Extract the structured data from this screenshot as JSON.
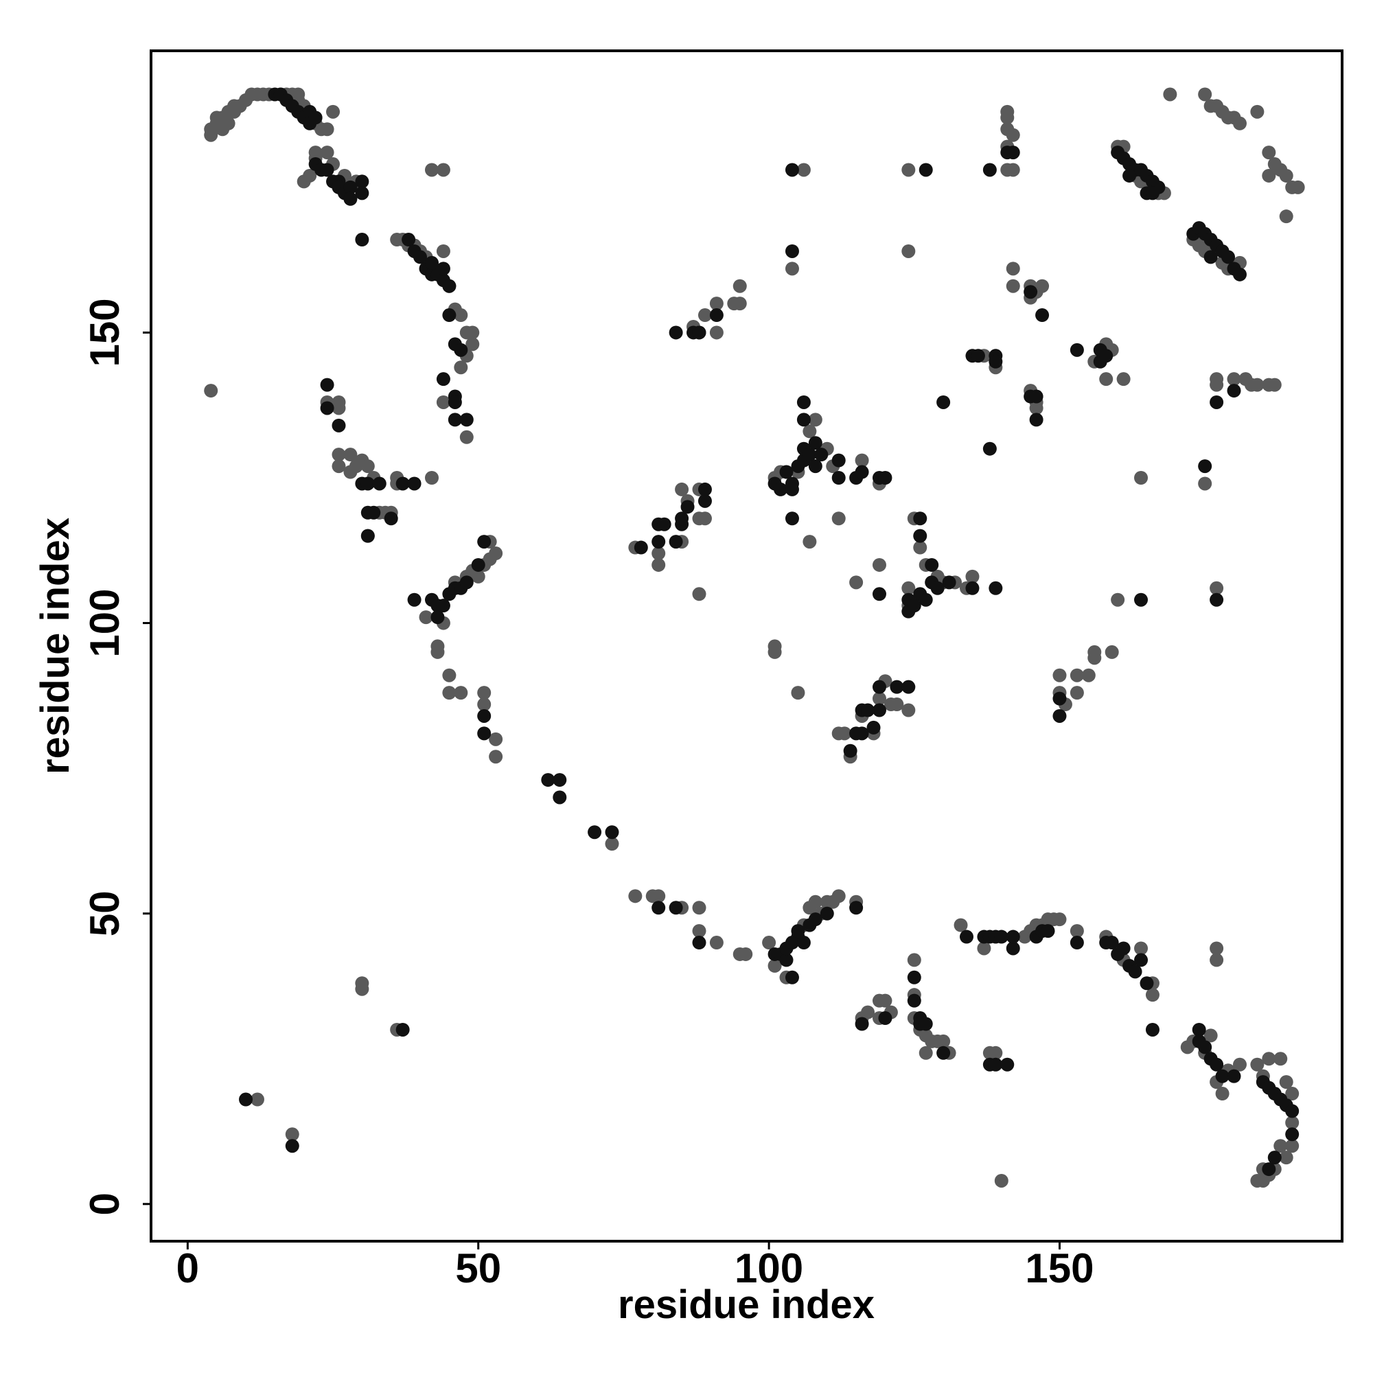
{
  "chart_data": {
    "type": "scatter",
    "xlabel": "residue index",
    "ylabel": "residue index",
    "xlim": [
      -6.3,
      198.6
    ],
    "ylim": [
      -6.4,
      198.5
    ],
    "xticks": [
      0,
      50,
      100,
      150
    ],
    "yticks": [
      0,
      50,
      100,
      150
    ],
    "series": [
      {
        "color": "#5a5a5a",
        "x": [
          4,
          4,
          5,
          5,
          6,
          6,
          7,
          7,
          8,
          8,
          9,
          10,
          11,
          12,
          13,
          14,
          16,
          17,
          18,
          19,
          19,
          20,
          22,
          23,
          24,
          25,
          20,
          21,
          22,
          22,
          24,
          25,
          27,
          28,
          29,
          44,
          42,
          36,
          37,
          38,
          39,
          40,
          41,
          44,
          45,
          46,
          47,
          48,
          49,
          49,
          48,
          47,
          44,
          48,
          42,
          24,
          26,
          26,
          26,
          26,
          28,
          28,
          29,
          30,
          31,
          32,
          33,
          34,
          35,
          36,
          36,
          4,
          31,
          41,
          44,
          46,
          48,
          49,
          50,
          51,
          52,
          53,
          52,
          43,
          43,
          45,
          45,
          47,
          51,
          51,
          53,
          53,
          73,
          77,
          80,
          81,
          85,
          88,
          88,
          91,
          95,
          96,
          100,
          101,
          103,
          106,
          107,
          108,
          109,
          110,
          111,
          112,
          115,
          125,
          125,
          125,
          126,
          127,
          127,
          128,
          129,
          130,
          131,
          133,
          137,
          138,
          139,
          116,
          117,
          119,
          120,
          119,
          121,
          144,
          145,
          146,
          147,
          148,
          149,
          150,
          153,
          158,
          161,
          164,
          166,
          166,
          172,
          173,
          175,
          176,
          177,
          178,
          179,
          181,
          184,
          185,
          186,
          188,
          189,
          190,
          190,
          190,
          189,
          188,
          187,
          186,
          185,
          184,
          185,
          140,
          177,
          177,
          30,
          30,
          36,
          12,
          18,
          77,
          81,
          81,
          85,
          85,
          86,
          88,
          89,
          88,
          88,
          101,
          102,
          105,
          107,
          108,
          110,
          111,
          116,
          119,
          107,
          112,
          119,
          115,
          124,
          125,
          126,
          127,
          129,
          130,
          132,
          134,
          135,
          124,
          101,
          101,
          105,
          112,
          113,
          114,
          116,
          119,
          120,
          121,
          122,
          124,
          118,
          150,
          150,
          151,
          153,
          153,
          155,
          156,
          156,
          159,
          87,
          89,
          88,
          91,
          91,
          94,
          95,
          95,
          106,
          104,
          124,
          124,
          137,
          139,
          141,
          141,
          141,
          142,
          141,
          142,
          141,
          142,
          142,
          145,
          145,
          146,
          147,
          145,
          146,
          146,
          156,
          158,
          159,
          158,
          161,
          160,
          161,
          163,
          164,
          166,
          167,
          168,
          169,
          164,
          160,
          173,
          174,
          175,
          178,
          179,
          181,
          175,
          176,
          177,
          178,
          179,
          180,
          181,
          184,
          175,
          177,
          177,
          180,
          182,
          184,
          186,
          187,
          177,
          183,
          186,
          187,
          188,
          189,
          190,
          191,
          189,
          186
        ],
        "values": [
          184,
          185,
          186,
          187,
          187,
          185,
          188,
          186,
          189,
          188,
          189,
          190,
          191,
          191,
          191,
          191,
          191,
          191,
          191,
          191,
          190,
          189,
          186,
          185,
          185,
          188,
          176,
          177,
          180,
          181,
          181,
          179,
          177,
          175,
          176,
          178,
          178,
          166,
          166,
          165,
          165,
          164,
          163,
          164,
          158,
          154,
          153,
          150,
          150,
          148,
          146,
          144,
          138,
          132,
          125,
          138,
          138,
          137,
          129,
          127,
          129,
          126,
          127,
          128,
          127,
          125,
          119,
          119,
          119,
          125,
          124,
          140,
          115,
          101,
          100,
          107,
          108,
          109,
          108,
          110,
          111,
          112,
          114,
          96,
          95,
          91,
          88,
          88,
          88,
          86,
          80,
          77,
          62,
          53,
          53,
          53,
          51,
          51,
          47,
          45,
          43,
          43,
          45,
          41,
          39,
          48,
          51,
          52,
          50,
          52,
          52,
          53,
          52,
          42,
          36,
          32,
          30,
          29,
          26,
          28,
          28,
          28,
          26,
          48,
          44,
          26,
          26,
          32,
          33,
          35,
          35,
          32,
          33,
          46,
          47,
          48,
          48,
          49,
          49,
          49,
          47,
          46,
          42,
          44,
          38,
          36,
          27,
          28,
          26,
          29,
          21,
          19,
          23,
          24,
          24,
          22,
          25,
          25,
          21,
          19,
          14,
          10,
          8,
          10,
          6,
          5,
          6,
          4,
          4,
          4,
          44,
          42,
          38,
          37,
          30,
          18,
          12,
          113,
          112,
          110,
          114,
          123,
          121,
          118,
          118,
          123,
          105,
          125,
          126,
          126,
          133,
          135,
          130,
          127,
          128,
          124,
          114,
          118,
          110,
          107,
          106,
          118,
          113,
          110,
          108,
          107,
          107,
          106,
          108,
          103,
          96,
          95,
          88,
          81,
          81,
          77,
          84,
          87,
          90,
          86,
          86,
          85,
          81,
          91,
          88,
          86,
          88,
          91,
          91,
          94,
          95,
          95,
          151,
          153,
          150,
          155,
          150,
          155,
          158,
          155,
          178,
          161,
          178,
          164,
          146,
          144,
          188,
          187,
          185,
          184,
          178,
          178,
          182,
          161,
          158,
          158,
          156,
          157,
          158,
          140,
          138,
          137,
          145,
          148,
          147,
          142,
          142,
          182,
          182,
          177,
          176,
          175,
          174,
          174,
          191,
          125,
          104,
          166,
          165,
          164,
          162,
          161,
          162,
          191,
          189,
          189,
          188,
          187,
          187,
          186,
          188,
          124,
          142,
          141,
          142,
          142,
          141,
          141,
          141,
          106,
          141,
          181,
          179,
          178,
          177,
          175,
          175,
          170,
          177
        ]
      },
      {
        "color": "#111111",
        "x": [
          15,
          16,
          17,
          18,
          19,
          20,
          21,
          21,
          22,
          22,
          23,
          24,
          25,
          26,
          26,
          27,
          28,
          30,
          30,
          28,
          38,
          39,
          40,
          41,
          42,
          43,
          44,
          45,
          42,
          44,
          45,
          46,
          47,
          46,
          46,
          44,
          46,
          48,
          30,
          24,
          24,
          26,
          30,
          31,
          31,
          32,
          31,
          33,
          37,
          39,
          35,
          39,
          42,
          43,
          43,
          44,
          45,
          46,
          47,
          48,
          51,
          50,
          51,
          51,
          62,
          64,
          64,
          70,
          73,
          81,
          84,
          88,
          101,
          102,
          103,
          103,
          104,
          104,
          105,
          105,
          106,
          107,
          108,
          115,
          110,
          125,
          125,
          126,
          126,
          127,
          130,
          134,
          138,
          139,
          141,
          137,
          138,
          139,
          142,
          116,
          120,
          146,
          147,
          148,
          153,
          158,
          159,
          160,
          161,
          162,
          163,
          164,
          165,
          166,
          142,
          140,
          174,
          174,
          175,
          176,
          177,
          178,
          180,
          185,
          186,
          187,
          188,
          189,
          190,
          190,
          187,
          186,
          37,
          10,
          18,
          78,
          81,
          82,
          81,
          84,
          85,
          85,
          86,
          89,
          89,
          101,
          102,
          103,
          104,
          104,
          105,
          106,
          106,
          107,
          108,
          108,
          109,
          112,
          112,
          115,
          116,
          119,
          120,
          106,
          106,
          104,
          124,
          124,
          125,
          126,
          127,
          126,
          126,
          128,
          128,
          129,
          131,
          135,
          139,
          119,
          114,
          115,
          116,
          116,
          118,
          119,
          119,
          122,
          124,
          117,
          150,
          150,
          84,
          87,
          91,
          88,
          104,
          104,
          127,
          130,
          135,
          136,
          139,
          139,
          138,
          141,
          142,
          138,
          145,
          147,
          145,
          146,
          146,
          153,
          157,
          157,
          158,
          160,
          161,
          162,
          163,
          164,
          165,
          166,
          167,
          165,
          166,
          162,
          164,
          173,
          174,
          175,
          176,
          177,
          178,
          179,
          180,
          181,
          176,
          175,
          177,
          180,
          177
        ],
        "values": [
          191,
          191,
          190,
          189,
          188,
          187,
          188,
          186,
          187,
          179,
          178,
          178,
          176,
          176,
          175,
          174,
          175,
          176,
          174,
          173,
          166,
          164,
          163,
          161,
          160,
          160,
          159,
          158,
          162,
          161,
          153,
          148,
          147,
          139,
          138,
          142,
          135,
          135,
          166,
          141,
          137,
          134,
          124,
          124,
          119,
          119,
          115,
          124,
          124,
          124,
          118,
          104,
          104,
          103,
          101,
          103,
          105,
          106,
          106,
          107,
          114,
          110,
          84,
          81,
          73,
          73,
          70,
          64,
          64,
          51,
          51,
          45,
          43,
          43,
          42,
          44,
          45,
          39,
          46,
          47,
          45,
          48,
          49,
          51,
          50,
          39,
          35,
          32,
          31,
          31,
          26,
          46,
          24,
          24,
          24,
          46,
          46,
          46,
          44,
          31,
          32,
          46,
          47,
          47,
          45,
          45,
          45,
          43,
          44,
          41,
          40,
          42,
          38,
          30,
          46,
          46,
          30,
          28,
          27,
          25,
          24,
          22,
          22,
          21,
          20,
          19,
          18,
          17,
          16,
          12,
          8,
          6,
          30,
          18,
          10,
          113,
          117,
          117,
          114,
          114,
          117,
          118,
          120,
          121,
          123,
          124,
          123,
          126,
          124,
          123,
          127,
          128,
          130,
          129,
          131,
          127,
          129,
          128,
          125,
          125,
          126,
          125,
          125,
          138,
          135,
          118,
          104,
          102,
          103,
          105,
          104,
          118,
          115,
          110,
          107,
          106,
          107,
          106,
          106,
          105,
          78,
          81,
          85,
          81,
          82,
          85,
          89,
          89,
          89,
          85,
          87,
          84,
          150,
          150,
          153,
          150,
          178,
          164,
          178,
          138,
          146,
          146,
          146,
          145,
          178,
          181,
          181,
          130,
          157,
          153,
          139,
          139,
          135,
          147,
          147,
          145,
          146,
          181,
          180,
          179,
          178,
          178,
          177,
          176,
          175,
          174,
          174,
          177,
          104,
          167,
          168,
          167,
          166,
          165,
          164,
          163,
          161,
          160,
          163,
          127,
          138,
          140,
          104
        ]
      }
    ]
  }
}
